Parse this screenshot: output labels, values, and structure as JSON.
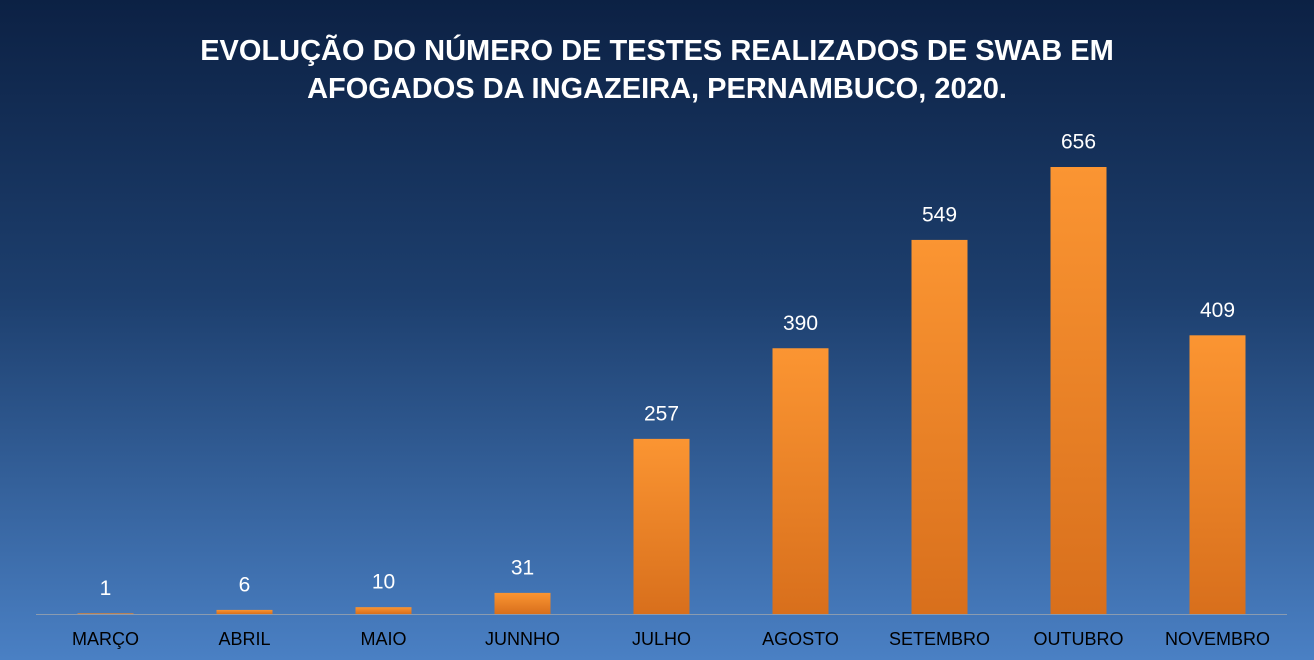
{
  "chart_data": {
    "type": "bar",
    "title": "EVOLUÇÃO DO NÚMERO DE TESTES REALIZADOS DE SWAB EM AFOGADOS DA INGAZEIRA, PERNAMBUCO, 2020.",
    "categories": [
      "MARÇO",
      "ABRIL",
      "MAIO",
      "JUNNHO",
      "JULHO",
      "AGOSTO",
      "SETEMBRO",
      "OUTUBRO",
      "NOVEMBRO"
    ],
    "values": [
      1,
      6,
      10,
      31,
      257,
      390,
      549,
      656,
      409
    ],
    "color": "#f7932b"
  }
}
